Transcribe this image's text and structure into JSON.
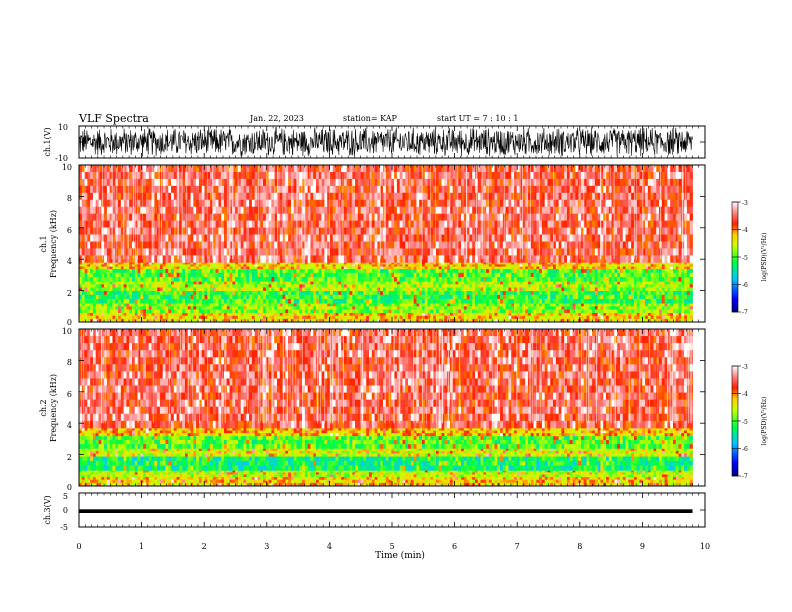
{
  "header": {
    "title": "VLF Spectra",
    "date": "Jan. 22, 2023",
    "station": "station= KAP",
    "start": "start UT =  7 : 10 : 1"
  },
  "chart_data": [
    {
      "type": "line",
      "panel": "ch1-waveform",
      "ylabel": "ch.1(V)",
      "ylim": [
        -10,
        10
      ],
      "yticks": [
        "10",
        "-10"
      ],
      "xlim": [
        0,
        10
      ],
      "data_extent_min": 9.8,
      "description_values": {
        "typical_amplitude_range_V": [
          -10,
          10
        ]
      }
    },
    {
      "type": "heatmap",
      "panel": "ch1-spectrogram",
      "ylabel": "ch.1 Frequency (kHz)",
      "ylabel_line1": "ch.1",
      "ylabel_line2": "Frequency (kHz)",
      "ylim": [
        0,
        10
      ],
      "yticks": [
        "0",
        "2",
        "4",
        "6",
        "8",
        "10"
      ],
      "xlim": [
        0,
        10
      ],
      "data_extent_min": 9.8,
      "bands_khz": [
        {
          "range": [
            0,
            0.6
          ],
          "level": -4.3
        },
        {
          "range": [
            0.6,
            1.2
          ],
          "level": -4.8
        },
        {
          "range": [
            1.2,
            2.0
          ],
          "level": -5.1
        },
        {
          "range": [
            2.0,
            2.6
          ],
          "level": -4.7
        },
        {
          "range": [
            2.6,
            3.4
          ],
          "level": -5.0
        },
        {
          "range": [
            3.4,
            3.8
          ],
          "level": -4.3
        },
        {
          "range": [
            3.8,
            10
          ],
          "level": -3.6
        }
      ],
      "colorbar": {
        "label": "log(PSD)(V²/Hz)",
        "range": [
          -7,
          -3
        ],
        "ticks": [
          "-3",
          "-4",
          "-5",
          "-6",
          "-7"
        ]
      }
    },
    {
      "type": "heatmap",
      "panel": "ch2-spectrogram",
      "ylabel": "ch.2 Frequency (kHz)",
      "ylabel_line1": "ch.2",
      "ylabel_line2": "Frequency (kHz)",
      "ylim": [
        0,
        10
      ],
      "yticks": [
        "0",
        "2",
        "4",
        "6",
        "8",
        "10"
      ],
      "xlim": [
        0,
        10
      ],
      "data_extent_min": 9.8,
      "bands_khz": [
        {
          "range": [
            0,
            0.6
          ],
          "level": -4.3
        },
        {
          "range": [
            0.6,
            1.0
          ],
          "level": -4.6
        },
        {
          "range": [
            1.0,
            1.9
          ],
          "level": -5.3
        },
        {
          "range": [
            1.9,
            2.4
          ],
          "level": -4.5
        },
        {
          "range": [
            2.4,
            3.2
          ],
          "level": -5.0
        },
        {
          "range": [
            3.2,
            3.7
          ],
          "level": -4.2
        },
        {
          "range": [
            3.7,
            10
          ],
          "level": -3.6
        }
      ],
      "colorbar": {
        "label": "log(PSD)(V²/Hz)",
        "range": [
          -7,
          -3
        ],
        "ticks": [
          "-3",
          "-4",
          "-5",
          "-6",
          "-7"
        ]
      }
    },
    {
      "type": "line",
      "panel": "ch3-waveform",
      "ylabel": "ch.3(V)",
      "ylim": [
        -5,
        5
      ],
      "yticks": [
        "5",
        "0",
        "-5"
      ],
      "xlim": [
        0,
        10
      ],
      "xticks": [
        "0",
        "1",
        "2",
        "3",
        "4",
        "5",
        "6",
        "7",
        "8",
        "9",
        "10"
      ],
      "xlabel": "Time (min)",
      "data_extent_min": 9.8,
      "description_values": {
        "signal_band_V": [
          -0.9,
          0.2
        ]
      }
    }
  ]
}
